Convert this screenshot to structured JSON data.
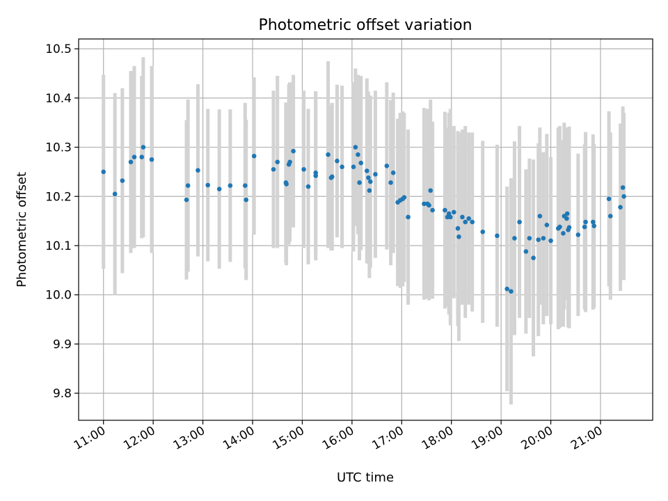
{
  "chart_data": {
    "type": "scatter",
    "title": "Photometric offset variation",
    "xlabel": "UTC time",
    "ylabel": "Photometric offset",
    "grid": true,
    "xlim": [
      10.5,
      22.05
    ],
    "ylim": [
      9.745,
      10.52
    ],
    "x_ticks": [
      {
        "x": 11,
        "label": "11:00"
      },
      {
        "x": 12,
        "label": "12:00"
      },
      {
        "x": 13,
        "label": "13:00"
      },
      {
        "x": 14,
        "label": "14:00"
      },
      {
        "x": 15,
        "label": "15:00"
      },
      {
        "x": 16,
        "label": "16:00"
      },
      {
        "x": 17,
        "label": "17:00"
      },
      {
        "x": 18,
        "label": "18:00"
      },
      {
        "x": 19,
        "label": "19:00"
      },
      {
        "x": 20,
        "label": "20:00"
      },
      {
        "x": 21,
        "label": "21:00"
      }
    ],
    "y_ticks": [
      {
        "y": 9.8,
        "label": "9.8"
      },
      {
        "y": 9.9,
        "label": "9.9"
      },
      {
        "y": 10.0,
        "label": "10.0"
      },
      {
        "y": 10.1,
        "label": "10.1"
      },
      {
        "y": 10.2,
        "label": "10.2"
      },
      {
        "y": 10.3,
        "label": "10.3"
      },
      {
        "y": 10.4,
        "label": "10.4"
      },
      {
        "y": 10.5,
        "label": "10.5"
      }
    ],
    "colors": {
      "points": "#1f77b4",
      "errorbars": "#d3d3d3",
      "grid": "#b0b0b0"
    },
    "series": [
      {
        "x": [
          11.0,
          11.23,
          11.38,
          11.55,
          11.62,
          11.77,
          11.8,
          11.97,
          12.67,
          12.7,
          12.9,
          13.1,
          13.33,
          13.55,
          13.85,
          13.87,
          14.03,
          14.42,
          14.5,
          14.67,
          14.68,
          14.73,
          14.75,
          14.82,
          15.03,
          15.12,
          15.27,
          15.27,
          15.52,
          15.58,
          15.6,
          15.7,
          15.8,
          16.03,
          16.07,
          16.12,
          16.15,
          16.18,
          16.3,
          16.33,
          16.35,
          16.37,
          16.47,
          16.7,
          16.78,
          16.83,
          16.92,
          16.97,
          17.02,
          17.05,
          17.13,
          17.45,
          17.52,
          17.55,
          17.58,
          17.62,
          17.87,
          17.92,
          17.95,
          17.98,
          18.05,
          18.13,
          18.15,
          18.22,
          18.28,
          18.35,
          18.42,
          18.63,
          18.92,
          19.12,
          19.2,
          19.27,
          19.37,
          19.5,
          19.57,
          19.65,
          19.75,
          19.78,
          19.85,
          19.92,
          20.0,
          20.15,
          20.18,
          20.25,
          20.27,
          20.32,
          20.33,
          20.35,
          20.37,
          20.55,
          20.68,
          20.7,
          20.85,
          20.87,
          21.17,
          21.2,
          21.4,
          21.45,
          21.47
        ],
        "y": [
          10.25,
          10.205,
          10.232,
          10.27,
          10.28,
          10.28,
          10.3,
          10.275,
          10.193,
          10.222,
          10.253,
          10.223,
          10.215,
          10.222,
          10.222,
          10.193,
          10.282,
          10.255,
          10.27,
          10.228,
          10.225,
          10.265,
          10.27,
          10.292,
          10.255,
          10.22,
          10.242,
          10.248,
          10.285,
          10.238,
          10.24,
          10.272,
          10.26,
          10.26,
          10.3,
          10.285,
          10.228,
          10.268,
          10.252,
          10.238,
          10.212,
          10.23,
          10.245,
          10.262,
          10.228,
          10.248,
          10.188,
          10.192,
          10.195,
          10.198,
          10.158,
          10.185,
          10.185,
          10.182,
          10.212,
          10.172,
          10.172,
          10.158,
          10.165,
          10.158,
          10.168,
          10.135,
          10.118,
          10.158,
          10.148,
          10.155,
          10.148,
          10.128,
          10.12,
          10.012,
          10.007,
          10.115,
          10.148,
          10.088,
          10.115,
          10.075,
          10.112,
          10.16,
          10.115,
          10.142,
          10.11,
          10.135,
          10.138,
          10.125,
          10.16,
          10.155,
          10.165,
          10.132,
          10.137,
          10.122,
          10.138,
          10.148,
          10.148,
          10.14,
          10.195,
          10.16,
          10.178,
          10.218,
          10.2
        ],
        "yerr": [
          0.197,
          0.205,
          0.188,
          0.185,
          0.185,
          0.165,
          0.183,
          0.19,
          0.162,
          0.175,
          0.175,
          0.155,
          0.162,
          0.155,
          0.168,
          0.163,
          0.16,
          0.16,
          0.175,
          0.163,
          0.165,
          0.163,
          0.162,
          0.155,
          0.16,
          0.158,
          0.172,
          0.165,
          0.19,
          0.148,
          0.15,
          0.155,
          0.165,
          0.172,
          0.16,
          0.162,
          0.158,
          0.177,
          0.188,
          0.175,
          0.178,
          0.175,
          0.17,
          0.17,
          0.168,
          0.163,
          0.17,
          0.178,
          0.178,
          0.172,
          0.178,
          0.195,
          0.193,
          0.193,
          0.185,
          0.18,
          0.2,
          0.182,
          0.205,
          0.22,
          0.175,
          0.198,
          0.212,
          0.178,
          0.195,
          0.175,
          0.182,
          0.185,
          0.185,
          0.208,
          0.23,
          0.197,
          0.195,
          0.167,
          0.162,
          0.2,
          0.196,
          0.18,
          0.175,
          0.185,
          0.17,
          0.205,
          0.205,
          0.19,
          0.19,
          0.16,
          0.175,
          0.198,
          0.205,
          0.165,
          0.168,
          0.183,
          0.178,
          0.167,
          0.178,
          0.17,
          0.17,
          0.165,
          0.17
        ]
      }
    ]
  }
}
